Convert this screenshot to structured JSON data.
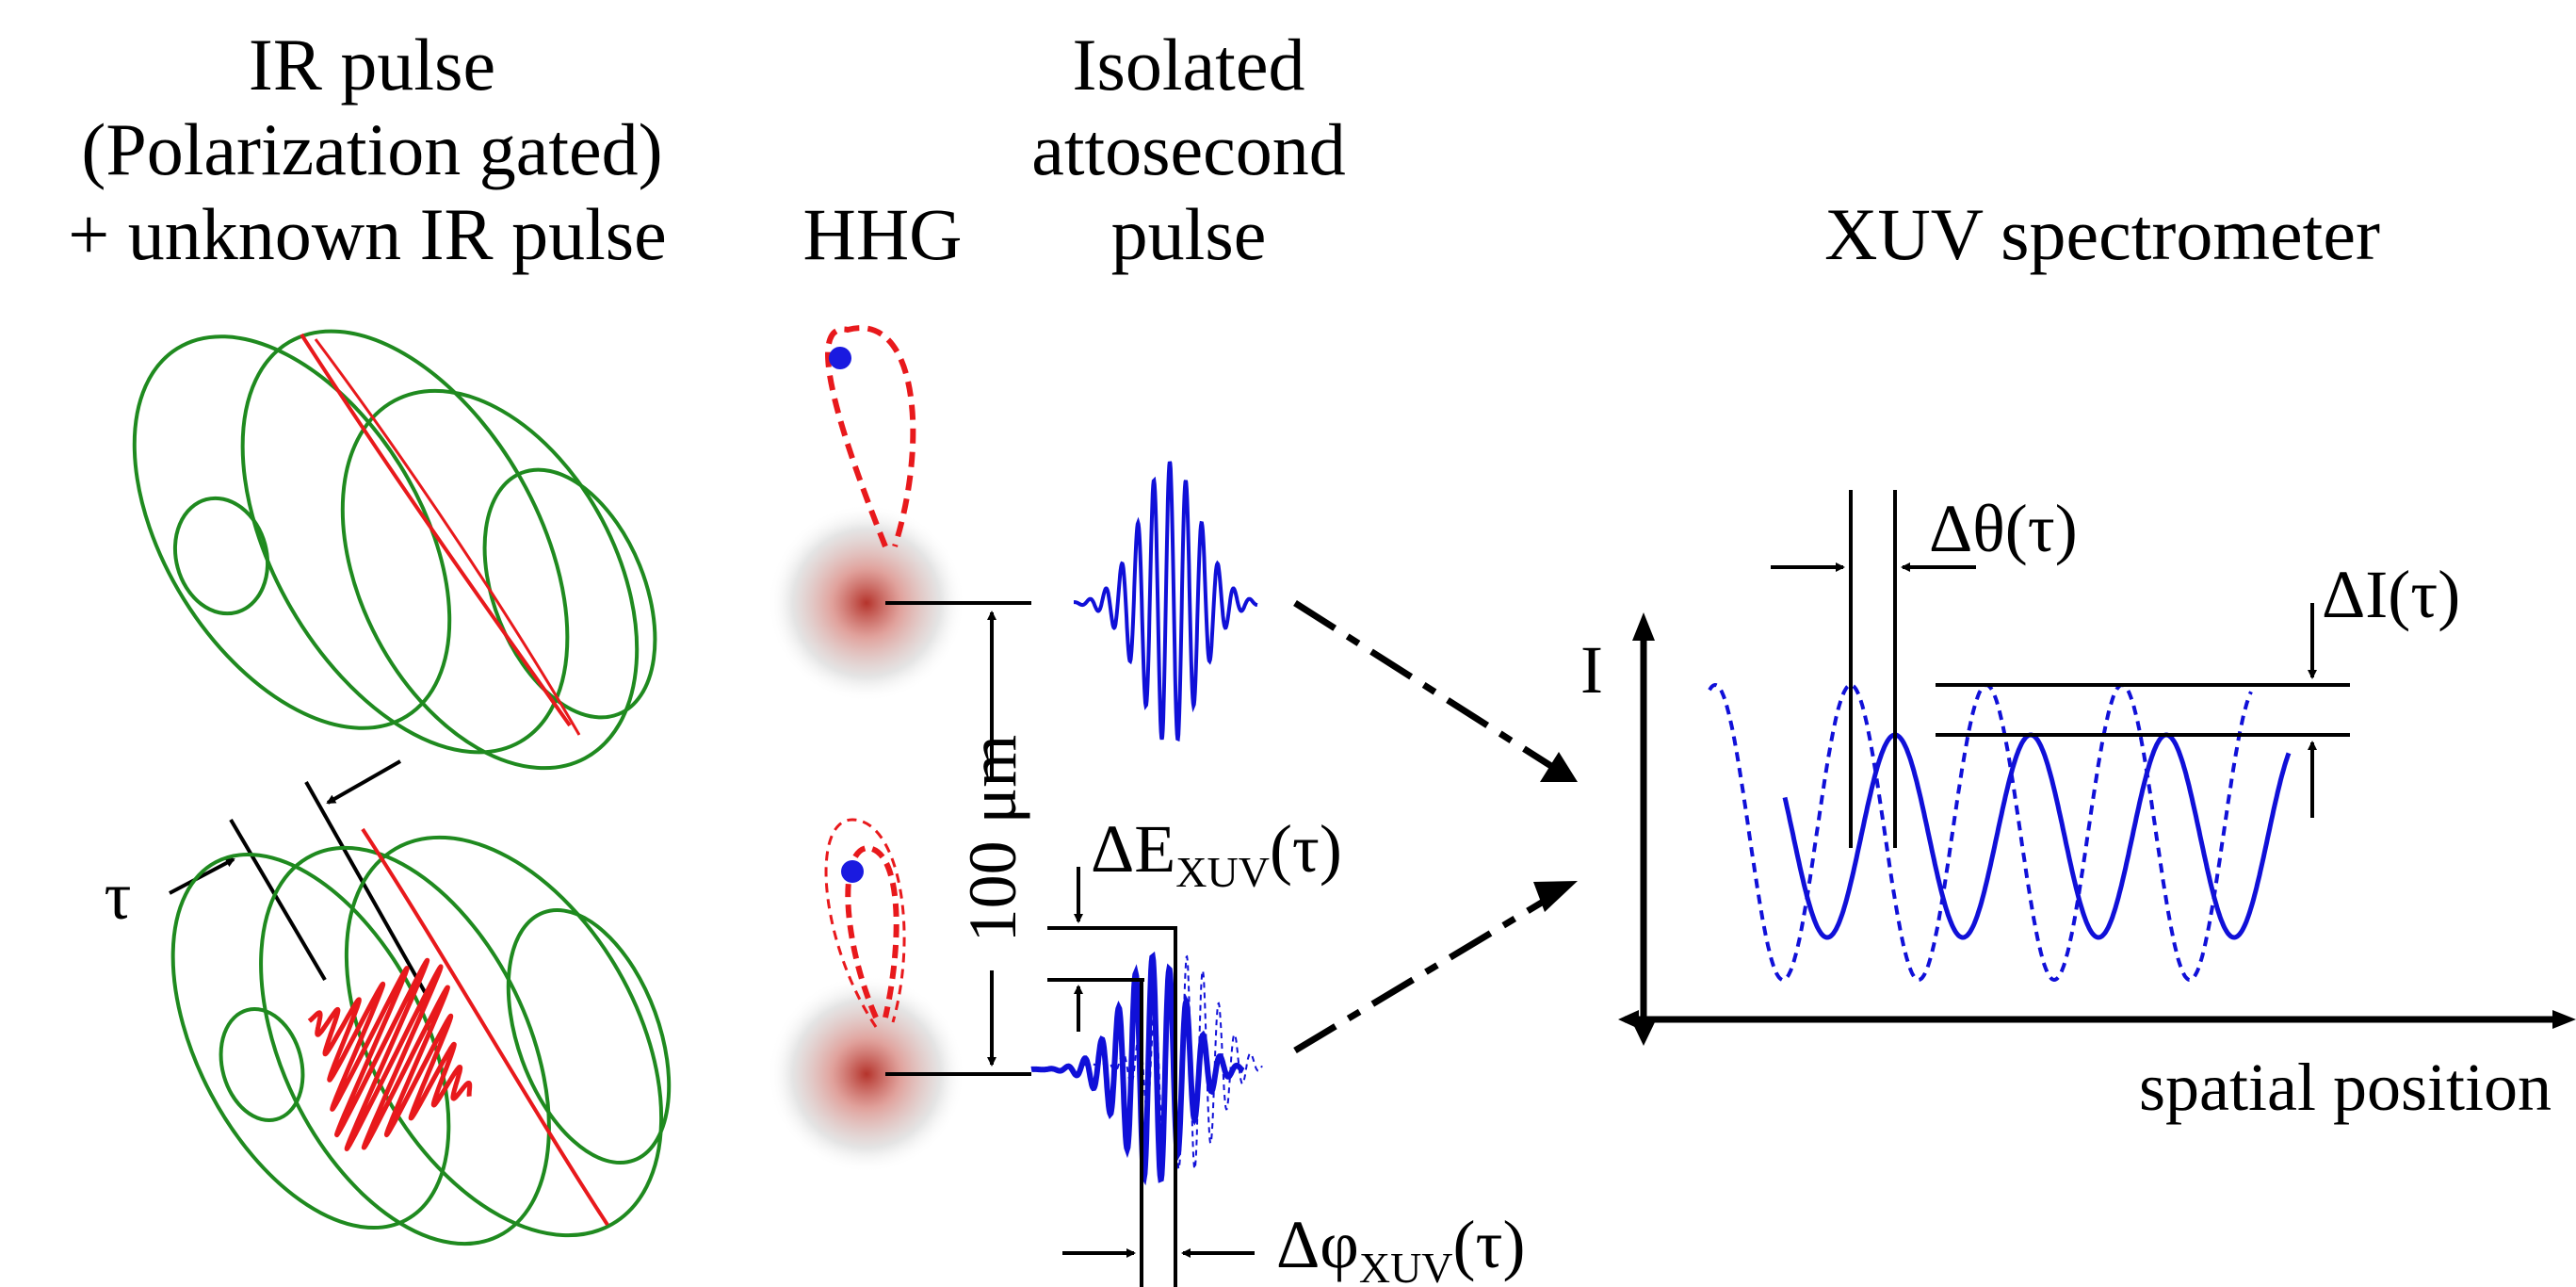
{
  "headers": {
    "ir_line1": "IR pulse",
    "ir_line2": "(Polarization gated)",
    "ir_line3": "+ unknown IR pulse",
    "hhg": "HHG",
    "iso_line1": "Isolated",
    "iso_line2": "attosecond",
    "iso_line3": "pulse",
    "spectrometer": "XUV spectrometer"
  },
  "labels": {
    "tau": "τ",
    "separation": "100 μm",
    "delta_e_main": "ΔE",
    "delta_e_sub": "XUV",
    "delta_e_arg": "(τ)",
    "delta_phi_main": "Δφ",
    "delta_phi_sub": "XUV",
    "delta_phi_arg": "(τ)",
    "delta_theta": "Δθ(τ)",
    "delta_i": "ΔI(τ)",
    "y_axis": "I",
    "x_axis": "spatial position"
  },
  "colors": {
    "ellipse": "#1f8a1f",
    "gate": "#e8191c",
    "xuv": "#1010d8",
    "electron": "#1a1ae0",
    "axis": "#000000"
  }
}
